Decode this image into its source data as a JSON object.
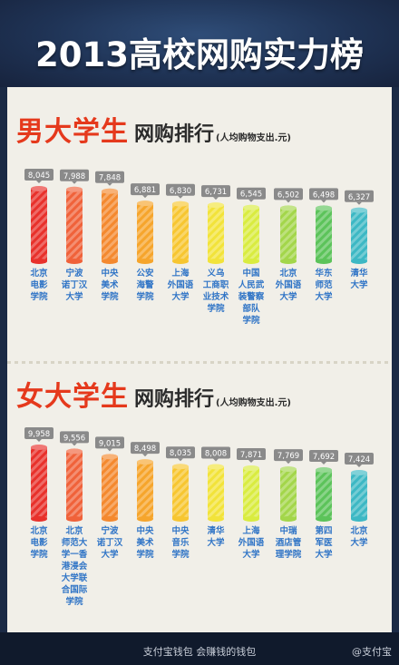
{
  "title": "2013高校网购实力榜",
  "colors": {
    "male_title": "#e5391c",
    "female_title": "#e5391c",
    "bar_palette": [
      "#e8312b",
      "#f0623a",
      "#f4892f",
      "#f6a52c",
      "#f7c631",
      "#f2e33a",
      "#d9ec40",
      "#a3d64a",
      "#5cc35a",
      "#3db8c4"
    ]
  },
  "chart_data": [
    {
      "type": "bar",
      "title_parts": {
        "big": "男大学生",
        "mid": "网购排行",
        "small": "(人均购物支出.元)"
      },
      "categories": [
        "北京电影学院",
        "宁波诺丁汉大学",
        "中央美术学院",
        "公安海警学院",
        "上海外国语大学",
        "义乌工商职业技术学院",
        "中国人民武装警察部队学院",
        "北京外国语大学",
        "华东师范大学",
        "清华大学"
      ],
      "category_lines": [
        [
          "北京",
          "电影",
          "学院"
        ],
        [
          "宁波",
          "诺丁汉",
          "大学"
        ],
        [
          "中央",
          "美术",
          "学院"
        ],
        [
          "公安",
          "海警",
          "学院"
        ],
        [
          "上海",
          "外国语",
          "大学"
        ],
        [
          "义乌",
          "工商职",
          "业技术",
          "学院"
        ],
        [
          "中国",
          "人民武",
          "装警察",
          "部队",
          "学院"
        ],
        [
          "北京",
          "外国语",
          "大学"
        ],
        [
          "华东",
          "师范",
          "大学"
        ],
        [
          "清华",
          "大学"
        ]
      ],
      "values": [
        8045,
        7988,
        7848,
        6881,
        6830,
        6731,
        6545,
        6502,
        6498,
        6327
      ],
      "value_labels": [
        "8,045",
        "7,988",
        "7,848",
        "6,881",
        "6,830",
        "6,731",
        "6,545",
        "6,502",
        "6,498",
        "6,327"
      ]
    },
    {
      "type": "bar",
      "title_parts": {
        "big": "女大学生",
        "mid": "网购排行",
        "small": "(人均购物支出.元)"
      },
      "categories": [
        "北京电影学院",
        "北京师范大学-香港浸会大学联合国际学院",
        "宁波诺丁汉大学",
        "中央美术学院",
        "中央音乐学院",
        "清华大学",
        "上海外国语大学",
        "中瑞酒店管理学院",
        "第四军医大学",
        "北京大学"
      ],
      "category_lines": [
        [
          "北京",
          "电影",
          "学院"
        ],
        [
          "北京",
          "师范大",
          "学一香",
          "港浸会",
          "大学联",
          "合国际",
          "学院"
        ],
        [
          "宁波",
          "诺丁汉",
          "大学"
        ],
        [
          "中央",
          "美术",
          "学院"
        ],
        [
          "中央",
          "音乐",
          "学院"
        ],
        [
          "清华",
          "大学"
        ],
        [
          "上海",
          "外国语",
          "大学"
        ],
        [
          "中瑞",
          "酒店管",
          "理学院"
        ],
        [
          "第四",
          "军医",
          "大学"
        ],
        [
          "北京",
          "大学"
        ]
      ],
      "values": [
        9958,
        9556,
        9015,
        8498,
        8035,
        8008,
        7871,
        7769,
        7692,
        7424
      ],
      "value_labels": [
        "9,958",
        "9,556",
        "9,015",
        "8,498",
        "8,035",
        "8,008",
        "7,871",
        "7,769",
        "7,692",
        "7,424"
      ]
    }
  ],
  "footer": {
    "slogan": "支付宝钱包 会赚钱的钱包",
    "brand": "@支付宝"
  }
}
